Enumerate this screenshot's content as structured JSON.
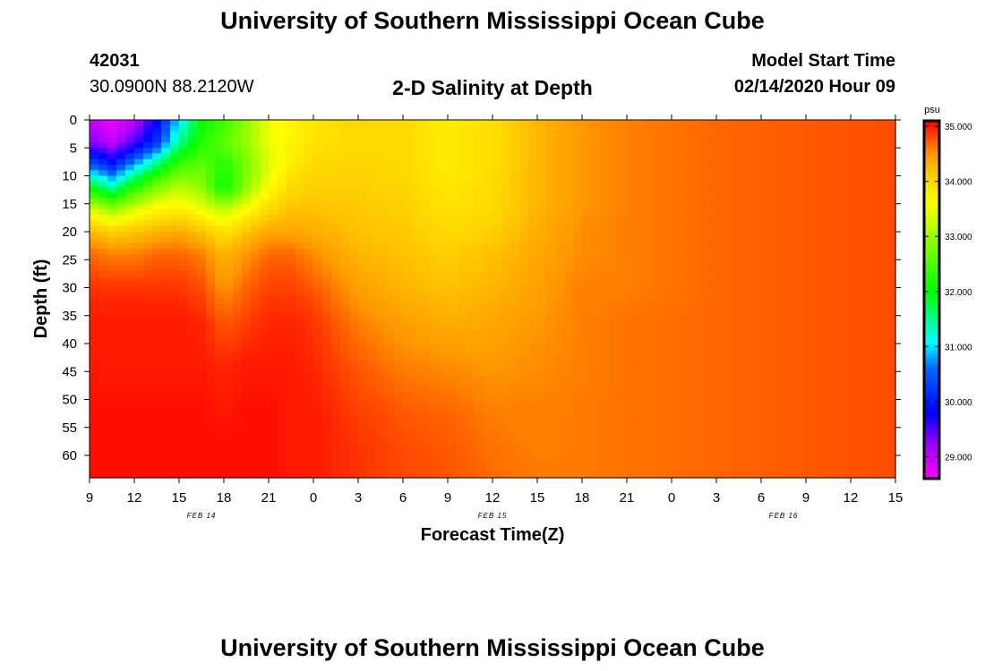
{
  "page": {
    "title_top": "University of Southern Mississippi Ocean Cube",
    "title_bottom": "University of Southern Mississippi Ocean Cube",
    "station_id": "42031",
    "coordinates": "30.0900N 88.2120W",
    "model_start_label": "Model Start Time",
    "model_start_value": "02/14/2020 Hour 09"
  },
  "chart_data": {
    "type": "heatmap",
    "title": "2-D Salinity at Depth",
    "xlabel": "Forecast Time(Z)",
    "ylabel": "Depth (ft)",
    "units": "psu",
    "x_hour_range": [
      0,
      54
    ],
    "ylim": [
      0,
      64
    ],
    "x_ticks": [
      {
        "hour": 0,
        "label": "9"
      },
      {
        "hour": 3,
        "label": "12"
      },
      {
        "hour": 6,
        "label": "15"
      },
      {
        "hour": 9,
        "label": "18"
      },
      {
        "hour": 12,
        "label": "21"
      },
      {
        "hour": 15,
        "label": "0"
      },
      {
        "hour": 18,
        "label": "3"
      },
      {
        "hour": 21,
        "label": "6"
      },
      {
        "hour": 24,
        "label": "9"
      },
      {
        "hour": 27,
        "label": "12"
      },
      {
        "hour": 30,
        "label": "15"
      },
      {
        "hour": 33,
        "label": "18"
      },
      {
        "hour": 36,
        "label": "21"
      },
      {
        "hour": 39,
        "label": "0"
      },
      {
        "hour": 42,
        "label": "3"
      },
      {
        "hour": 45,
        "label": "6"
      },
      {
        "hour": 48,
        "label": "9"
      },
      {
        "hour": 51,
        "label": "12"
      },
      {
        "hour": 54,
        "label": "15"
      }
    ],
    "date_labels": [
      {
        "hour": 7.5,
        "label": "FEB 14"
      },
      {
        "hour": 27,
        "label": "FEB 15"
      },
      {
        "hour": 46.5,
        "label": "FEB 16"
      }
    ],
    "y_ticks": [
      0,
      5,
      10,
      15,
      20,
      25,
      30,
      35,
      40,
      45,
      50,
      55,
      60
    ],
    "colorbar": {
      "min": 28.6,
      "max": 35.1,
      "tick_values": [
        35,
        34,
        33,
        32,
        31,
        30,
        29
      ],
      "tick_labels": [
        "35.000",
        "34.000",
        "33.000",
        "32.000",
        "31.000",
        "30.000",
        "29.000"
      ],
      "stops": [
        {
          "v": 28.6,
          "c": "#ff00ff"
        },
        {
          "v": 29.2,
          "c": "#a000ff"
        },
        {
          "v": 29.8,
          "c": "#0000ff"
        },
        {
          "v": 30.6,
          "c": "#0066ff"
        },
        {
          "v": 31.1,
          "c": "#00ffff"
        },
        {
          "v": 32.0,
          "c": "#00ff00"
        },
        {
          "v": 33.0,
          "c": "#99ff00"
        },
        {
          "v": 33.6,
          "c": "#ffff00"
        },
        {
          "v": 34.1,
          "c": "#ffd000"
        },
        {
          "v": 34.5,
          "c": "#ff9900"
        },
        {
          "v": 35.1,
          "c": "#ff0000"
        }
      ]
    },
    "salinity_grid": {
      "hours": [
        0,
        1.5,
        3,
        4.5,
        6,
        7.5,
        9,
        10.5,
        12,
        13.5,
        15,
        18,
        21,
        24,
        27,
        30,
        33,
        36,
        42,
        48,
        54
      ],
      "depths": [
        0,
        4,
        8,
        12,
        16,
        20,
        24,
        30,
        36,
        44,
        52,
        58,
        64
      ],
      "values": [
        [
          29.0,
          28.7,
          29.0,
          29.8,
          31.0,
          32.0,
          32.4,
          32.9,
          33.5,
          33.7,
          33.9,
          34.0,
          34.0,
          33.8,
          33.95,
          34.3,
          34.5,
          34.6,
          34.7,
          34.75,
          34.8
        ],
        [
          29.3,
          29.0,
          29.5,
          30.2,
          31.5,
          32.2,
          32.6,
          33.0,
          33.5,
          33.7,
          33.9,
          34.0,
          34.0,
          33.8,
          33.95,
          34.3,
          34.5,
          34.6,
          34.7,
          34.75,
          34.8
        ],
        [
          30.5,
          30.0,
          30.8,
          31.6,
          32.4,
          32.6,
          32.2,
          32.8,
          33.4,
          33.8,
          34.0,
          34.05,
          34.0,
          33.8,
          33.95,
          34.3,
          34.5,
          34.6,
          34.7,
          34.75,
          34.8
        ],
        [
          32.0,
          31.4,
          32.2,
          32.8,
          33.2,
          32.9,
          32.0,
          32.9,
          33.6,
          34.0,
          34.1,
          34.1,
          34.05,
          33.85,
          34.0,
          34.3,
          34.5,
          34.6,
          34.7,
          34.75,
          34.8
        ],
        [
          33.4,
          33.0,
          33.4,
          33.7,
          33.8,
          33.5,
          33.2,
          33.6,
          34.0,
          34.2,
          34.2,
          34.15,
          34.1,
          33.9,
          34.0,
          34.3,
          34.5,
          34.6,
          34.7,
          34.75,
          34.8
        ],
        [
          34.3,
          34.1,
          34.2,
          34.3,
          34.4,
          34.2,
          33.9,
          34.2,
          34.4,
          34.4,
          34.35,
          34.2,
          34.15,
          34.0,
          34.1,
          34.35,
          34.55,
          34.6,
          34.7,
          34.75,
          34.8
        ],
        [
          34.7,
          34.6,
          34.6,
          34.7,
          34.7,
          34.6,
          34.3,
          34.5,
          34.7,
          34.7,
          34.55,
          34.3,
          34.2,
          34.1,
          34.2,
          34.4,
          34.55,
          34.6,
          34.7,
          34.75,
          34.8
        ],
        [
          34.9,
          34.9,
          34.9,
          34.9,
          34.9,
          34.8,
          34.5,
          34.7,
          34.85,
          34.85,
          34.75,
          34.45,
          34.3,
          34.2,
          34.3,
          34.45,
          34.6,
          34.6,
          34.7,
          34.75,
          34.8
        ],
        [
          35.0,
          35.0,
          35.0,
          35.0,
          35.0,
          34.95,
          34.75,
          34.85,
          34.95,
          34.95,
          34.9,
          34.6,
          34.45,
          34.35,
          34.4,
          34.5,
          34.6,
          34.65,
          34.7,
          34.75,
          34.8
        ],
        [
          35.0,
          35.0,
          35.0,
          35.0,
          35.0,
          35.0,
          34.95,
          35.0,
          35.0,
          35.0,
          34.95,
          34.75,
          34.6,
          34.55,
          34.5,
          34.55,
          34.6,
          34.65,
          34.7,
          34.75,
          34.8
        ],
        [
          35.05,
          35.05,
          35.05,
          35.05,
          35.05,
          35.05,
          35.0,
          35.05,
          35.05,
          35.0,
          35.0,
          34.85,
          34.75,
          34.7,
          34.6,
          34.6,
          34.62,
          34.65,
          34.7,
          34.75,
          34.8
        ],
        [
          35.05,
          35.05,
          35.05,
          35.05,
          35.05,
          35.05,
          35.05,
          35.05,
          35.05,
          35.0,
          35.0,
          34.9,
          34.8,
          34.75,
          34.65,
          34.6,
          34.62,
          34.65,
          34.7,
          34.75,
          34.8
        ],
        [
          35.05,
          35.05,
          35.05,
          35.05,
          35.05,
          35.05,
          35.05,
          35.05,
          35.05,
          35.0,
          35.0,
          34.9,
          34.82,
          34.78,
          34.68,
          34.62,
          34.62,
          34.65,
          34.7,
          34.75,
          34.8
        ]
      ]
    }
  }
}
